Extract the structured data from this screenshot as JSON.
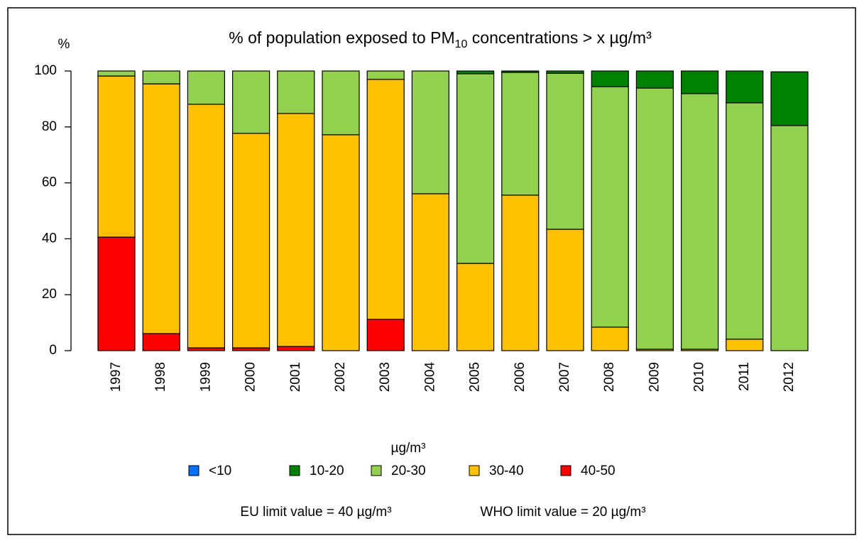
{
  "chart_data": {
    "type": "stacked_bar",
    "title": {
      "text": "% of population exposed to PM",
      "subscript": "10",
      "rest": " concentrations > x µg/m³"
    },
    "y_label": "%",
    "legend_title": "µg/m³",
    "notes": [
      "EU limit value = 40 µg/m³",
      "WHO limit value = 20 µg/m³"
    ],
    "categories": [
      "1997",
      "1998",
      "1999",
      "2000",
      "2001",
      "2002",
      "2003",
      "2004",
      "2005",
      "2006",
      "2007",
      "2008",
      "2009",
      "2010",
      "2011",
      "2012"
    ],
    "series": [
      {
        "name": "40-50",
        "color": "#ff0000",
        "values": [
          40.6,
          6.1,
          1,
          1,
          1.5,
          0,
          11.2,
          0,
          0,
          0,
          0,
          0,
          0,
          0,
          0,
          0
        ]
      },
      {
        "name": "30-40",
        "color": "#ffc000",
        "values": [
          57.6,
          89.3,
          87.1,
          76.7,
          83.3,
          77.2,
          85.8,
          56.1,
          31.2,
          55.6,
          43.4,
          8.4,
          0.5,
          0.5,
          4.1,
          0
        ]
      },
      {
        "name": "20-30",
        "color": "#92d050",
        "values": [
          1.8,
          4.6,
          11.9,
          22.3,
          15.2,
          22.8,
          3,
          43.9,
          67.8,
          43.9,
          55.8,
          86,
          93.4,
          91.4,
          84.5,
          80.5
        ]
      },
      {
        "name": "10-20",
        "color": "#008000",
        "values": [
          0,
          0,
          0,
          0,
          0,
          0,
          0,
          0,
          1,
          0.5,
          0.8,
          5.6,
          6.1,
          8.1,
          11.4,
          19.2
        ]
      },
      {
        "name": "<10",
        "color": "#0070ff",
        "values": [
          0,
          0,
          0,
          0,
          0,
          0,
          0,
          0,
          0,
          0,
          0,
          0,
          0,
          0,
          0,
          0
        ]
      }
    ],
    "legend_order": [
      4,
      3,
      2,
      1,
      0
    ],
    "ylim": [
      0,
      100
    ],
    "yticks": [
      0,
      20,
      40,
      60,
      80,
      100
    ]
  }
}
